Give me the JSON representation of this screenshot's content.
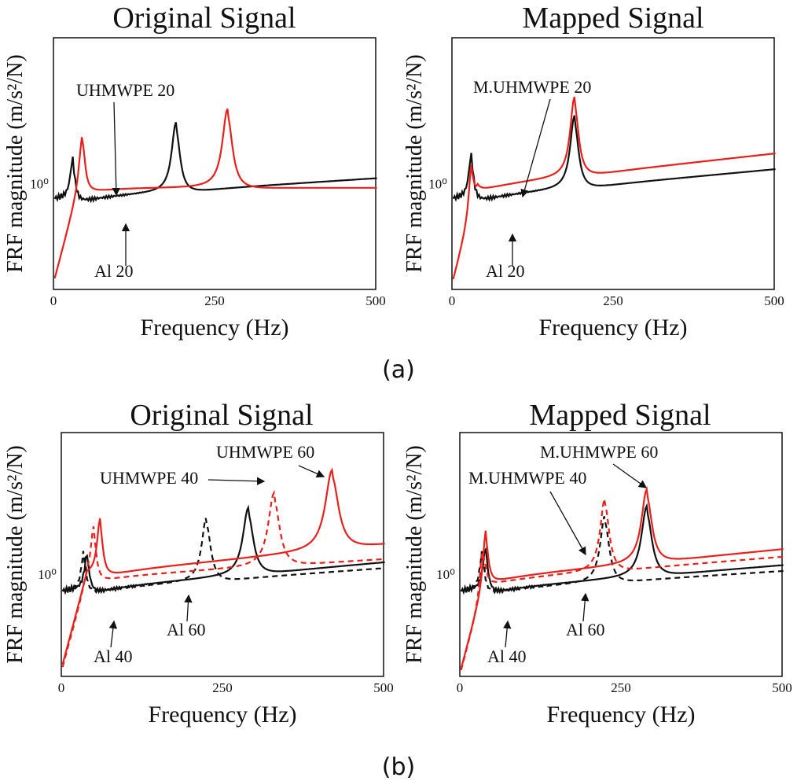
{
  "figure": {
    "panel_labels": [
      "(a)",
      "(b)"
    ]
  },
  "chart_data": [
    {
      "type": "line",
      "panel": "(a)",
      "title": "Original Signal",
      "xlabel": "Frequency (Hz)",
      "ylabel": "FRF magnitude",
      "ylabel_unit": "(m/s²/N)",
      "xlim": [
        0,
        500
      ],
      "xticks": [
        "0",
        "250",
        "500"
      ],
      "yscale": "log",
      "ytick_label": "10⁰",
      "series": [
        {
          "name": "Al 20",
          "color": "#111111",
          "dash": "solid",
          "base": 0.55,
          "slope": 0.35,
          "peaks": [
            [
              30,
              1.2
            ],
            [
              190,
              2.1
            ]
          ],
          "noise": true
        },
        {
          "name": "UHMWPE 20",
          "color": "#e8201c",
          "dash": "solid",
          "base": 0.85,
          "slope": 0.0,
          "peaks": [
            [
              45,
              1.6
            ],
            [
              270,
              2.4
            ]
          ],
          "start_low": true,
          "level_after": 1.55
        }
      ],
      "annotations": [
        "UHMWPE 20",
        "Al 20"
      ]
    },
    {
      "type": "line",
      "panel": "(a)",
      "title": "Mapped Signal",
      "xlabel": "Frequency (Hz)",
      "ylabel": "FRF magnitude",
      "ylabel_unit": "(m/s²/N)",
      "xlim": [
        0,
        500
      ],
      "xticks": [
        "0",
        "250",
        "500"
      ],
      "yscale": "log",
      "ytick_label": "10⁰",
      "series": [
        {
          "name": "Al 20",
          "color": "#111111",
          "dash": "solid",
          "base": 0.55,
          "slope": 0.5,
          "peaks": [
            [
              30,
              1.3
            ],
            [
              190,
              2.2
            ]
          ],
          "noise": true
        },
        {
          "name": "M.UHMWPE 20",
          "color": "#e8201c",
          "dash": "solid",
          "base": 0.8,
          "slope": 0.6,
          "peaks": [
            [
              30,
              1.4
            ],
            [
              190,
              2.4
            ]
          ],
          "start_low": true
        }
      ],
      "annotations": [
        "M.UHMWPE 20",
        "Al 20"
      ]
    },
    {
      "type": "line",
      "panel": "(b)",
      "title": "Original Signal",
      "xlabel": "Frequency (Hz)",
      "ylabel": "FRF magnitude",
      "ylabel_unit": "(m/s²/N)",
      "xlim": [
        0,
        500
      ],
      "xticks": [
        "0",
        "250",
        "500"
      ],
      "yscale": "log",
      "ytick_label": "10⁰",
      "series": [
        {
          "name": "Al 40",
          "color": "#111111",
          "dash": "dashed",
          "base": 0.5,
          "slope": 0.4,
          "peaks": [
            [
              35,
              1.2
            ],
            [
              225,
              2.0
            ]
          ],
          "noise": true
        },
        {
          "name": "Al 60",
          "color": "#111111",
          "dash": "solid",
          "base": 0.5,
          "slope": 0.5,
          "peaks": [
            [
              40,
              1.1
            ],
            [
              290,
              2.1
            ]
          ],
          "noise": true
        },
        {
          "name": "UHMWPE 40",
          "color": "#e8201c",
          "dash": "dashed",
          "base": 0.8,
          "slope": 0.35,
          "peaks": [
            [
              50,
              1.6
            ],
            [
              330,
              2.3
            ]
          ],
          "start_low": true
        },
        {
          "name": "UHMWPE 60",
          "color": "#e8201c",
          "dash": "solid",
          "base": 0.9,
          "slope": 0.55,
          "peaks": [
            [
              60,
              1.7
            ],
            [
              420,
              2.5
            ]
          ],
          "start_low": true
        }
      ],
      "annotations": [
        "UHMWPE 60",
        "UHMWPE 40",
        "Al 60",
        "Al 40"
      ]
    },
    {
      "type": "line",
      "panel": "(b)",
      "title": "Mapped Signal",
      "xlabel": "Frequency (Hz)",
      "ylabel": "FRF magnitude",
      "ylabel_unit": "(m/s²/N)",
      "xlim": [
        0,
        500
      ],
      "xticks": [
        "0",
        "250",
        "500"
      ],
      "yscale": "log",
      "ytick_label": "10⁰",
      "series": [
        {
          "name": "Al 40",
          "color": "#111111",
          "dash": "dashed",
          "base": 0.5,
          "slope": 0.35,
          "peaks": [
            [
              35,
              1.2
            ],
            [
              225,
              2.1
            ]
          ],
          "noise": true
        },
        {
          "name": "Al 60",
          "color": "#111111",
          "dash": "solid",
          "base": 0.5,
          "slope": 0.45,
          "peaks": [
            [
              40,
              1.3
            ],
            [
              290,
              2.2
            ]
          ],
          "noise": true
        },
        {
          "name": "M.UHMWPE 40",
          "color": "#e8201c",
          "dash": "dashed",
          "base": 0.7,
          "slope": 0.45,
          "peaks": [
            [
              35,
              1.4
            ],
            [
              225,
              2.3
            ]
          ],
          "start_low": true
        },
        {
          "name": "M.UHMWPE 60",
          "color": "#e8201c",
          "dash": "solid",
          "base": 0.75,
          "slope": 0.55,
          "peaks": [
            [
              40,
              1.5
            ],
            [
              290,
              2.3
            ]
          ],
          "start_low": true
        }
      ],
      "annotations": [
        "M.UHMWPE 60",
        "M.UHMWPE 40",
        "Al 60",
        "Al 40"
      ]
    }
  ]
}
